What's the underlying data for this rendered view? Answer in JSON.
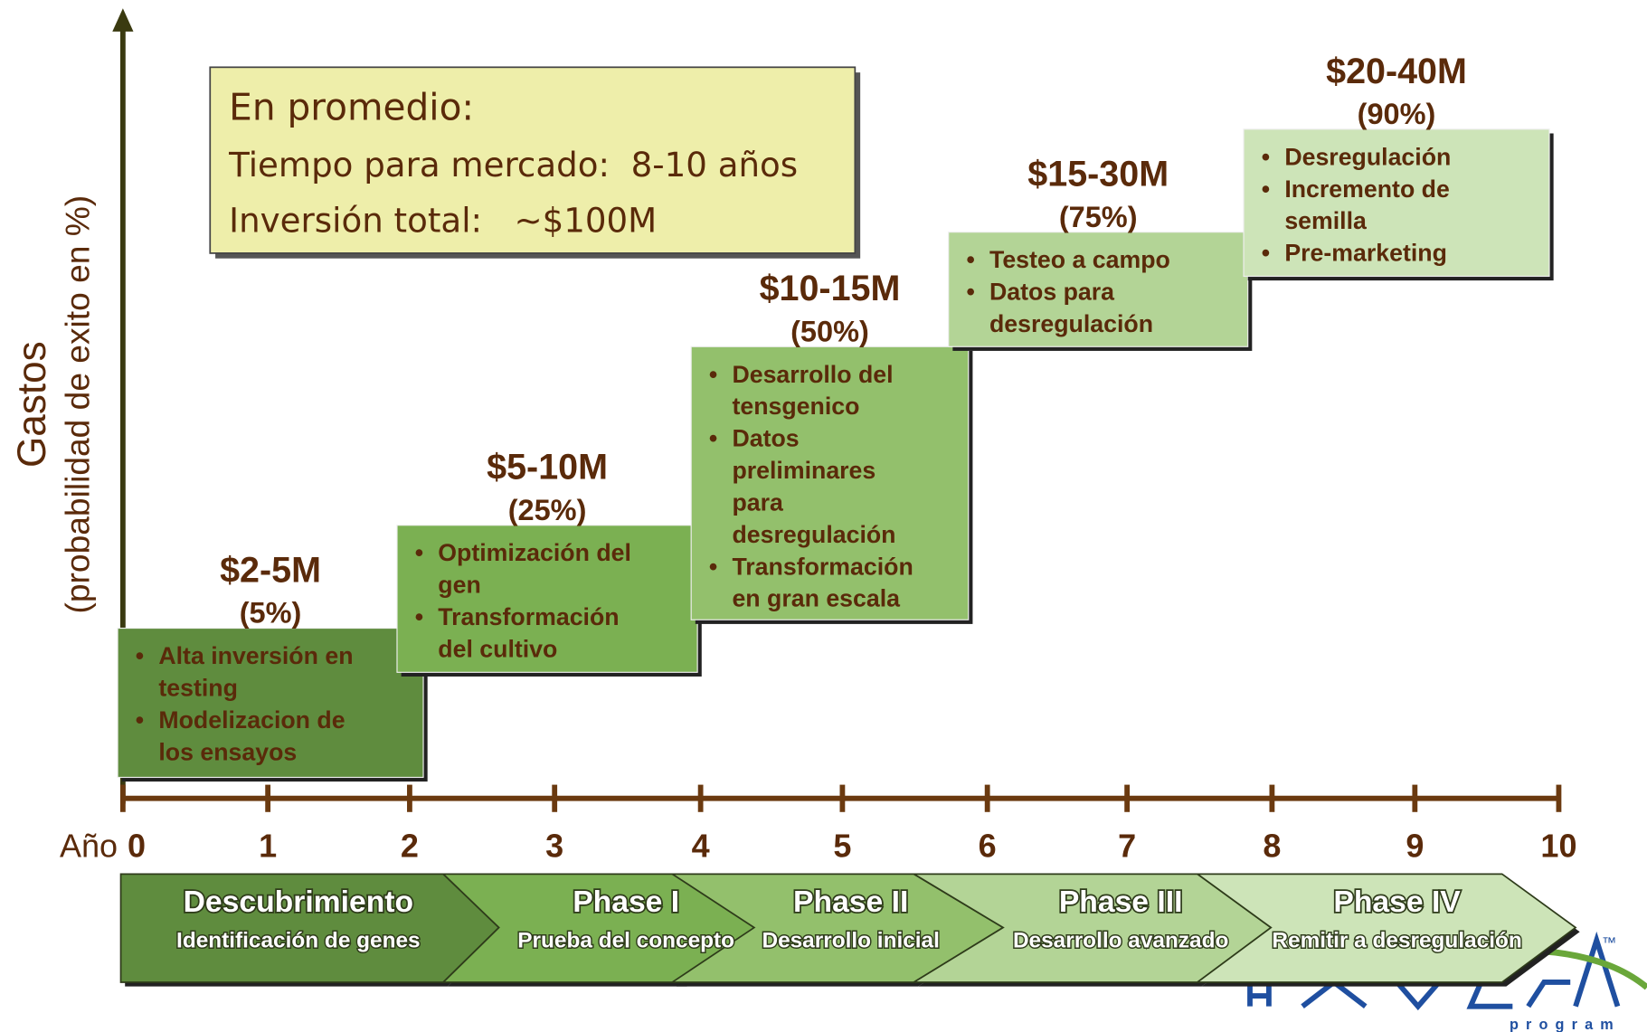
{
  "y_axis": {
    "label": "Gastos",
    "sublabel": "(probabilidad de exito en %)"
  },
  "summary": {
    "title": "En promedio:",
    "lines": [
      "Tiempo para mercado:  8-10 años",
      "Inversión total:   ~$100M"
    ]
  },
  "x_axis": {
    "prefix": "Año",
    "ticks": [
      "0",
      "1",
      "2",
      "3",
      "4",
      "5",
      "6",
      "7",
      "8",
      "9",
      "10"
    ]
  },
  "stages": [
    {
      "cost": "$2-5M",
      "probability": "(5%)",
      "bullets": [
        [
          "Alta inversión en",
          "testing"
        ],
        [
          "Modelizacion de",
          "los ensayos"
        ]
      ]
    },
    {
      "cost": "$5-10M",
      "probability": "(25%)",
      "bullets": [
        [
          "Optimización del",
          "gen"
        ],
        [
          "Transformación",
          "del cultivo"
        ]
      ]
    },
    {
      "cost": "$10-15M",
      "probability": "(50%)",
      "bullets": [
        [
          "Desarrollo del",
          "tensgenico"
        ],
        [
          "Datos",
          "preliminares",
          "para",
          "desregulación"
        ],
        [
          "Transformación",
          "en gran escala"
        ]
      ]
    },
    {
      "cost": "$15-30M",
      "probability": "(75%)",
      "bullets": [
        [
          "Testeo a campo"
        ],
        [
          "Datos para",
          "desregulación"
        ]
      ]
    },
    {
      "cost": "$20-40M",
      "probability": "(90%)",
      "bullets": [
        [
          "Desregulación"
        ],
        [
          "Incremento de",
          "semilla"
        ],
        [
          "Pre-marketing"
        ]
      ]
    }
  ],
  "phases": [
    {
      "name": "Descubrimiento",
      "subtitle": "Identificación de genes"
    },
    {
      "name": "Phase I",
      "subtitle": "Prueba del concepto"
    },
    {
      "name": "Phase II",
      "subtitle": "Desarrollo inicial"
    },
    {
      "name": "Phase III",
      "subtitle": "Desarrollo avanzado"
    },
    {
      "name": "Phase IV",
      "subtitle": "Remitir a desregulación"
    }
  ],
  "logo": {
    "trademark": "™",
    "program": "program"
  }
}
